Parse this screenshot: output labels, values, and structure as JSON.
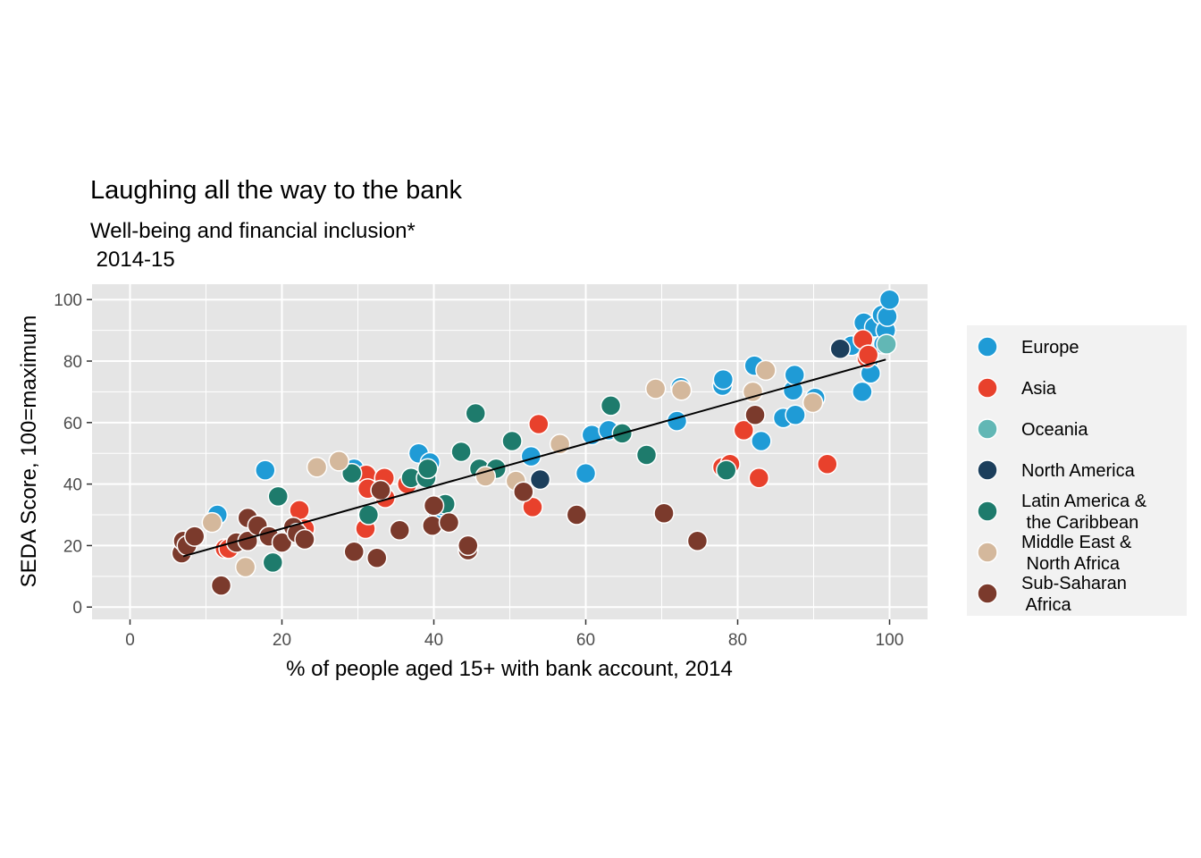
{
  "chart_data": {
    "type": "scatter",
    "title": "Laughing all the way to the bank",
    "subtitle_lines": [
      "Well-being and financial inclusion*",
      " 2014-15"
    ],
    "xlabel": "% of people aged 15+ with bank account, 2014",
    "ylabel": "SEDA Score, 100=maximum",
    "xlim": [
      -5,
      105
    ],
    "ylim": [
      -4,
      105
    ],
    "x_ticks": [
      0,
      20,
      40,
      60,
      80,
      100
    ],
    "y_ticks": [
      0,
      20,
      40,
      60,
      80,
      100
    ],
    "x_tick_labels": [
      "0",
      "20",
      "40",
      "60",
      "80",
      "100"
    ],
    "y_tick_labels": [
      "0",
      "20",
      "40",
      "60",
      "80",
      "100"
    ],
    "grid": true,
    "panel_background": "#e5e5e5",
    "grid_color": "#ffffff",
    "legend_position": "right",
    "trend_line": {
      "type": "linear",
      "from": [
        7,
        16.5
      ],
      "to": [
        99.5,
        80.5
      ],
      "color": "#000000"
    },
    "series": [
      {
        "name": "Europe",
        "color": "#1f9bd6",
        "points": [
          [
            11.5,
            30
          ],
          [
            17.8,
            44.5
          ],
          [
            29.5,
            45
          ],
          [
            38,
            50
          ],
          [
            39.5,
            47
          ],
          [
            40.5,
            31
          ],
          [
            41,
            33
          ],
          [
            52.8,
            49
          ],
          [
            60,
            43.5
          ],
          [
            60.8,
            56
          ],
          [
            63,
            57.5
          ],
          [
            72,
            60.5
          ],
          [
            72.5,
            71.5
          ],
          [
            78,
            72
          ],
          [
            78.1,
            74
          ],
          [
            82.2,
            78.5
          ],
          [
            83.1,
            54
          ],
          [
            86,
            61.5
          ],
          [
            87.3,
            70.5
          ],
          [
            87.5,
            75.5
          ],
          [
            87.6,
            62.5
          ],
          [
            90.2,
            68
          ],
          [
            95,
            85
          ],
          [
            96.4,
            70
          ],
          [
            96.6,
            92.5
          ],
          [
            97.2,
            80
          ],
          [
            97.5,
            76
          ],
          [
            98,
            91
          ],
          [
            99,
            95
          ],
          [
            99.2,
            85.5
          ],
          [
            99.5,
            90
          ],
          [
            99.7,
            94.5
          ],
          [
            100,
            100
          ]
        ]
      },
      {
        "name": "Asia",
        "color": "#e8412c",
        "points": [
          [
            12.5,
            19
          ],
          [
            13,
            19
          ],
          [
            22.3,
            31.5
          ],
          [
            23,
            25.5
          ],
          [
            31,
            25.5
          ],
          [
            31.1,
            43
          ],
          [
            31.3,
            38.5
          ],
          [
            33.5,
            42
          ],
          [
            33.6,
            35.5
          ],
          [
            36.5,
            40
          ],
          [
            53,
            32.5
          ],
          [
            53.8,
            59.5
          ],
          [
            78,
            45.5
          ],
          [
            79,
            46.5
          ],
          [
            80.8,
            57.5
          ],
          [
            82.8,
            42
          ],
          [
            91.8,
            46.5
          ],
          [
            96.5,
            87
          ],
          [
            97,
            81
          ],
          [
            97.2,
            82
          ]
        ]
      },
      {
        "name": "Oceania",
        "color": "#62b7b5",
        "points": [
          [
            99.6,
            85.5
          ]
        ]
      },
      {
        "name": "North America",
        "color": "#1c3f5c",
        "points": [
          [
            54,
            41.5
          ],
          [
            93.5,
            84
          ]
        ]
      },
      {
        "name": "Latin America &\n the Caribbean",
        "color": "#1e7b6c",
        "points": [
          [
            18.8,
            14.5
          ],
          [
            19.5,
            36
          ],
          [
            29.2,
            43.5
          ],
          [
            31.4,
            30
          ],
          [
            37,
            42
          ],
          [
            39,
            42
          ],
          [
            39.2,
            45
          ],
          [
            41.5,
            33.5
          ],
          [
            43.6,
            50.5
          ],
          [
            45.5,
            63
          ],
          [
            46,
            45
          ],
          [
            48.2,
            45
          ],
          [
            50.3,
            54
          ],
          [
            63.3,
            65.5
          ],
          [
            64.8,
            56.5
          ],
          [
            68,
            49.5
          ],
          [
            78.5,
            44.5
          ]
        ]
      },
      {
        "name": "Middle East &\n North Africa",
        "color": "#d4b89c",
        "points": [
          [
            10.8,
            27.5
          ],
          [
            15.2,
            13
          ],
          [
            24.6,
            45.5
          ],
          [
            27.5,
            47.5
          ],
          [
            46.8,
            42.5
          ],
          [
            50.8,
            41
          ],
          [
            56.6,
            53
          ],
          [
            69.2,
            71
          ],
          [
            72.6,
            70.5
          ],
          [
            82,
            70
          ],
          [
            83.7,
            77
          ],
          [
            89.9,
            66.5
          ]
        ]
      },
      {
        "name": "Sub-Saharan\n Africa",
        "color": "#7b3a2c",
        "points": [
          [
            6.8,
            17.5
          ],
          [
            7,
            21.5
          ],
          [
            7.5,
            20
          ],
          [
            8.5,
            23
          ],
          [
            12,
            7
          ],
          [
            14,
            21
          ],
          [
            15.5,
            29
          ],
          [
            15.5,
            21.5
          ],
          [
            16.8,
            26.5
          ],
          [
            18.3,
            23
          ],
          [
            20,
            21
          ],
          [
            21.5,
            26
          ],
          [
            22,
            24
          ],
          [
            23,
            22
          ],
          [
            29.5,
            18
          ],
          [
            32.5,
            16
          ],
          [
            33,
            38
          ],
          [
            35.5,
            25
          ],
          [
            39.8,
            26.5
          ],
          [
            40,
            33
          ],
          [
            42,
            27.5
          ],
          [
            44.5,
            18.5
          ],
          [
            44.5,
            20
          ],
          [
            51.8,
            37.5
          ],
          [
            58.8,
            30
          ],
          [
            70.3,
            30.5
          ],
          [
            74.7,
            21.5
          ],
          [
            82.3,
            62.5
          ]
        ]
      }
    ]
  }
}
